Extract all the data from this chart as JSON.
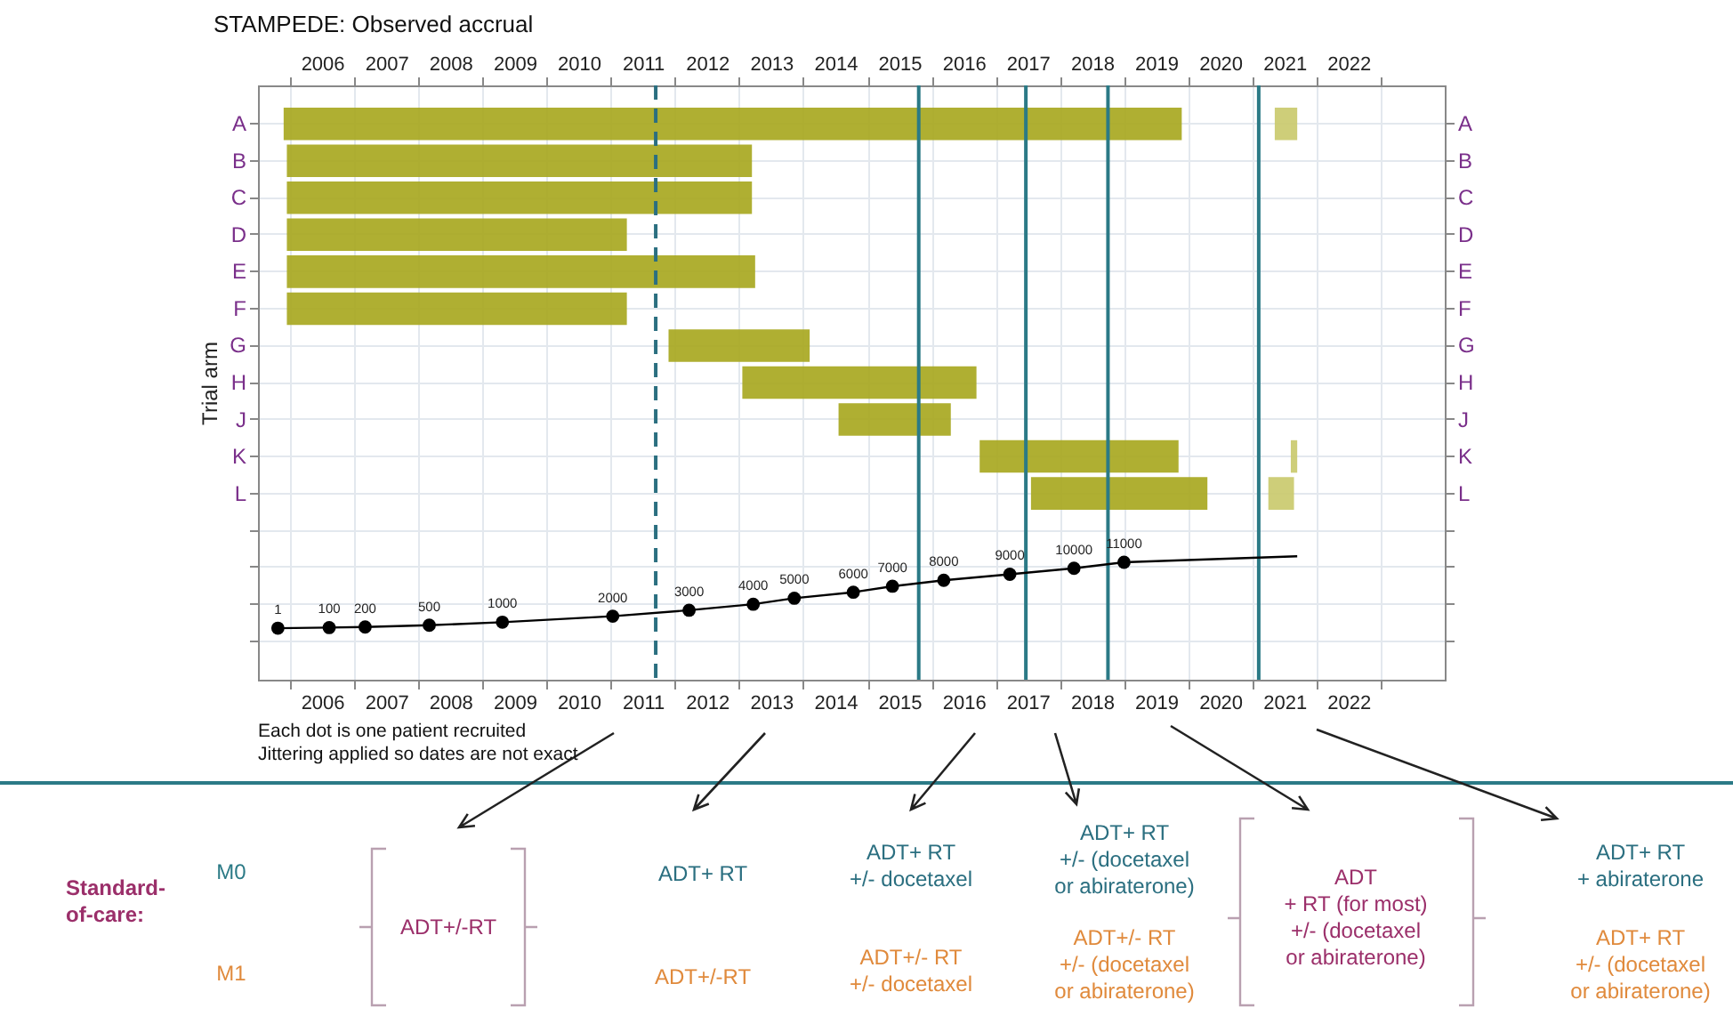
{
  "chart_data": [
    {
      "type": "bar",
      "orientation": "horizontal",
      "title": "STAMPEDE: Observed accrual",
      "ylabel": "Trial arm",
      "categories": [
        "A",
        "B",
        "C",
        "D",
        "E",
        "F",
        "G",
        "H",
        "J",
        "K",
        "L",
        null,
        null,
        null,
        null
      ],
      "xlim": [
        2005.5,
        2024
      ],
      "xticks": [
        {
          "value": 2006,
          "label": null
        },
        {
          "value": 2006.5,
          "label": "2006"
        },
        {
          "value": 2007,
          "label": null
        },
        {
          "value": 2007.5,
          "label": "2007"
        },
        {
          "value": 2008,
          "label": null
        },
        {
          "value": 2008.5,
          "label": "2008"
        },
        {
          "value": 2009,
          "label": null
        },
        {
          "value": 2009.5,
          "label": "2009"
        },
        {
          "value": 2010,
          "label": null
        },
        {
          "value": 2010.5,
          "label": "2010"
        },
        {
          "value": 2011,
          "label": null
        },
        {
          "value": 2011.5,
          "label": "2011"
        },
        {
          "value": 2012,
          "label": null
        },
        {
          "value": 2012.5,
          "label": "2012"
        },
        {
          "value": 2013,
          "label": null
        },
        {
          "value": 2013.5,
          "label": "2013"
        },
        {
          "value": 2014,
          "label": null
        },
        {
          "value": 2014.5,
          "label": "2014"
        },
        {
          "value": 2015,
          "label": null
        },
        {
          "value": 2015.5,
          "label": "2015"
        },
        {
          "value": 2016,
          "label": null
        },
        {
          "value": 2016.5,
          "label": "2016"
        },
        {
          "value": 2017,
          "label": null
        },
        {
          "value": 2017.5,
          "label": "2017"
        },
        {
          "value": 2018,
          "label": null
        },
        {
          "value": 2018.5,
          "label": "2018"
        },
        {
          "value": 2019,
          "label": null
        },
        {
          "value": 2019.5,
          "label": "2019"
        },
        {
          "value": 2020,
          "label": null
        },
        {
          "value": 2020.5,
          "label": "2020"
        },
        {
          "value": 2021,
          "label": null
        },
        {
          "value": 2021.5,
          "label": "2021"
        },
        {
          "value": 2022,
          "label": null
        },
        {
          "value": 2022.5,
          "label": "2022"
        },
        {
          "value": 2023,
          "label": null
        }
      ],
      "x2lim": [
        2005.5,
        2024
      ],
      "x2ticks": [
        {
          "value": 2006,
          "label": null
        },
        {
          "value": 2006.5,
          "label": "2006"
        },
        {
          "value": 2007,
          "label": null
        },
        {
          "value": 2007.5,
          "label": "2007"
        },
        {
          "value": 2008,
          "label": null
        },
        {
          "value": 2008.5,
          "label": "2008"
        },
        {
          "value": 2009,
          "label": null
        },
        {
          "value": 2009.5,
          "label": "2009"
        },
        {
          "value": 2010,
          "label": null
        },
        {
          "value": 2010.5,
          "label": "2010"
        },
        {
          "value": 2011,
          "label": null
        },
        {
          "value": 2011.5,
          "label": "2011"
        },
        {
          "value": 2012,
          "label": null
        },
        {
          "value": 2012.5,
          "label": "2012"
        },
        {
          "value": 2013,
          "label": null
        },
        {
          "value": 2013.5,
          "label": "2013"
        },
        {
          "value": 2014,
          "label": null
        },
        {
          "value": 2014.5,
          "label": "2014"
        },
        {
          "value": 2015,
          "label": null
        },
        {
          "value": 2015.5,
          "label": "2015"
        },
        {
          "value": 2016,
          "label": null
        },
        {
          "value": 2016.5,
          "label": "2016"
        },
        {
          "value": 2017,
          "label": null
        },
        {
          "value": 2017.5,
          "label": "2017"
        },
        {
          "value": 2018,
          "label": null
        },
        {
          "value": 2018.5,
          "label": "2018"
        },
        {
          "value": 2019,
          "label": null
        },
        {
          "value": 2019.5,
          "label": "2019"
        },
        {
          "value": 2020,
          "label": null
        },
        {
          "value": 2020.5,
          "label": "2020"
        },
        {
          "value": 2021,
          "label": null
        },
        {
          "value": 2021.5,
          "label": "2021"
        },
        {
          "value": 2022,
          "label": null
        },
        {
          "value": 2022.5,
          "label": "2022"
        },
        {
          "value": 2023,
          "label": null
        }
      ],
      "grid": true,
      "series": [
        {
          "color": "#a6a61c",
          "base": [
            2005.9,
            2005.95,
            2005.95,
            2005.95,
            2005.95,
            2005.95,
            2011.9,
            2013.05,
            2014.55,
            2016.75,
            2017.55,
            null,
            null,
            null,
            null
          ],
          "values": [
            14.0,
            7.25,
            7.25,
            5.3,
            7.3,
            5.3,
            2.2,
            3.65,
            1.75,
            3.1,
            2.75,
            null,
            null,
            null,
            null
          ]
        },
        {
          "color": "#c9c96a",
          "base": [
            2021.35,
            null,
            null,
            null,
            null,
            null,
            null,
            null,
            null,
            2021.6,
            2021.25,
            null,
            null,
            null,
            null
          ],
          "values": [
            0.35,
            null,
            null,
            null,
            null,
            null,
            null,
            null,
            null,
            0.1,
            0.4,
            null,
            null,
            null,
            null
          ]
        }
      ],
      "ref_lines": [
        {
          "axis": "x",
          "value": 2011.7,
          "color": "#2b6f80",
          "line_style": "dashed"
        },
        {
          "axis": "x",
          "value": 2015.8,
          "color": "#2b7a86",
          "line_style": "solid"
        },
        {
          "axis": "x",
          "value": 2017.47,
          "color": "#2b7a86",
          "line_style": "solid"
        },
        {
          "axis": "x",
          "value": 2018.75,
          "color": "#2b7a86",
          "line_style": "solid"
        },
        {
          "axis": "x",
          "value": 2021.1,
          "color": "#2b7a86",
          "line_style": "solid"
        }
      ],
      "annotations": [
        "Each dot is one patient recruited",
        "Jittering applied so dates are not exact",
        "Standard-\nof-care:",
        "M0",
        "M1",
        "ADT+/-RT",
        "ADT+ RT",
        "ADT+/-RT",
        "ADT+ RT\n+/- docetaxel",
        "ADT+/- RT\n+/- docetaxel",
        "ADT+ RT\n+/- (docetaxel\nor abiraterone)",
        "ADT+/- RT\n+/- (docetaxel\nor abiraterone)",
        "ADT\n+ RT (for most)\n+/- (docetaxel\nor abiraterone)",
        "ADT+ RT\n+ abiraterone",
        "ADT+ RT\n+/- (docetaxel\nor abiraterone)"
      ]
    },
    {
      "type": "line",
      "xlim": [
        2005.5,
        2024
      ],
      "ylim": [
        -8600,
        90600
      ],
      "tick_labels": false,
      "series": [
        {
          "color": "#000000",
          "x": [
            2005.81,
            2006.61,
            2007.17,
            2008.17,
            2009.31,
            2011.03,
            2012.22,
            2013.22,
            2013.86,
            2014.78,
            2015.39,
            2016.19,
            2017.22,
            2018.22,
            2019.0,
            2021.7
          ],
          "values": [
            1,
            100,
            200,
            500,
            1000,
            2000,
            3000,
            4000,
            5000,
            6000,
            7000,
            8000,
            9000,
            10000,
            11000,
            12000
          ]
        },
        {
          "type": "scatter",
          "marker": "circle",
          "color": "#000000",
          "x": [
            2005.81,
            2006.61,
            2007.17,
            2008.17,
            2009.31,
            2011.03,
            2012.22,
            2013.22,
            2013.86,
            2014.78,
            2015.39,
            2016.19,
            2017.22,
            2018.22,
            2019.0
          ],
          "values": [
            1,
            100,
            200,
            500,
            1000,
            2000,
            3000,
            4000,
            5000,
            6000,
            7000,
            8000,
            9000,
            10000,
            11000
          ],
          "value_labels": [
            "1",
            "100",
            "200",
            "500",
            "1000",
            "2000",
            "3000",
            "4000",
            "5000",
            "6000",
            "7000",
            "8000",
            "9000",
            "10000",
            "11000"
          ]
        }
      ]
    }
  ]
}
